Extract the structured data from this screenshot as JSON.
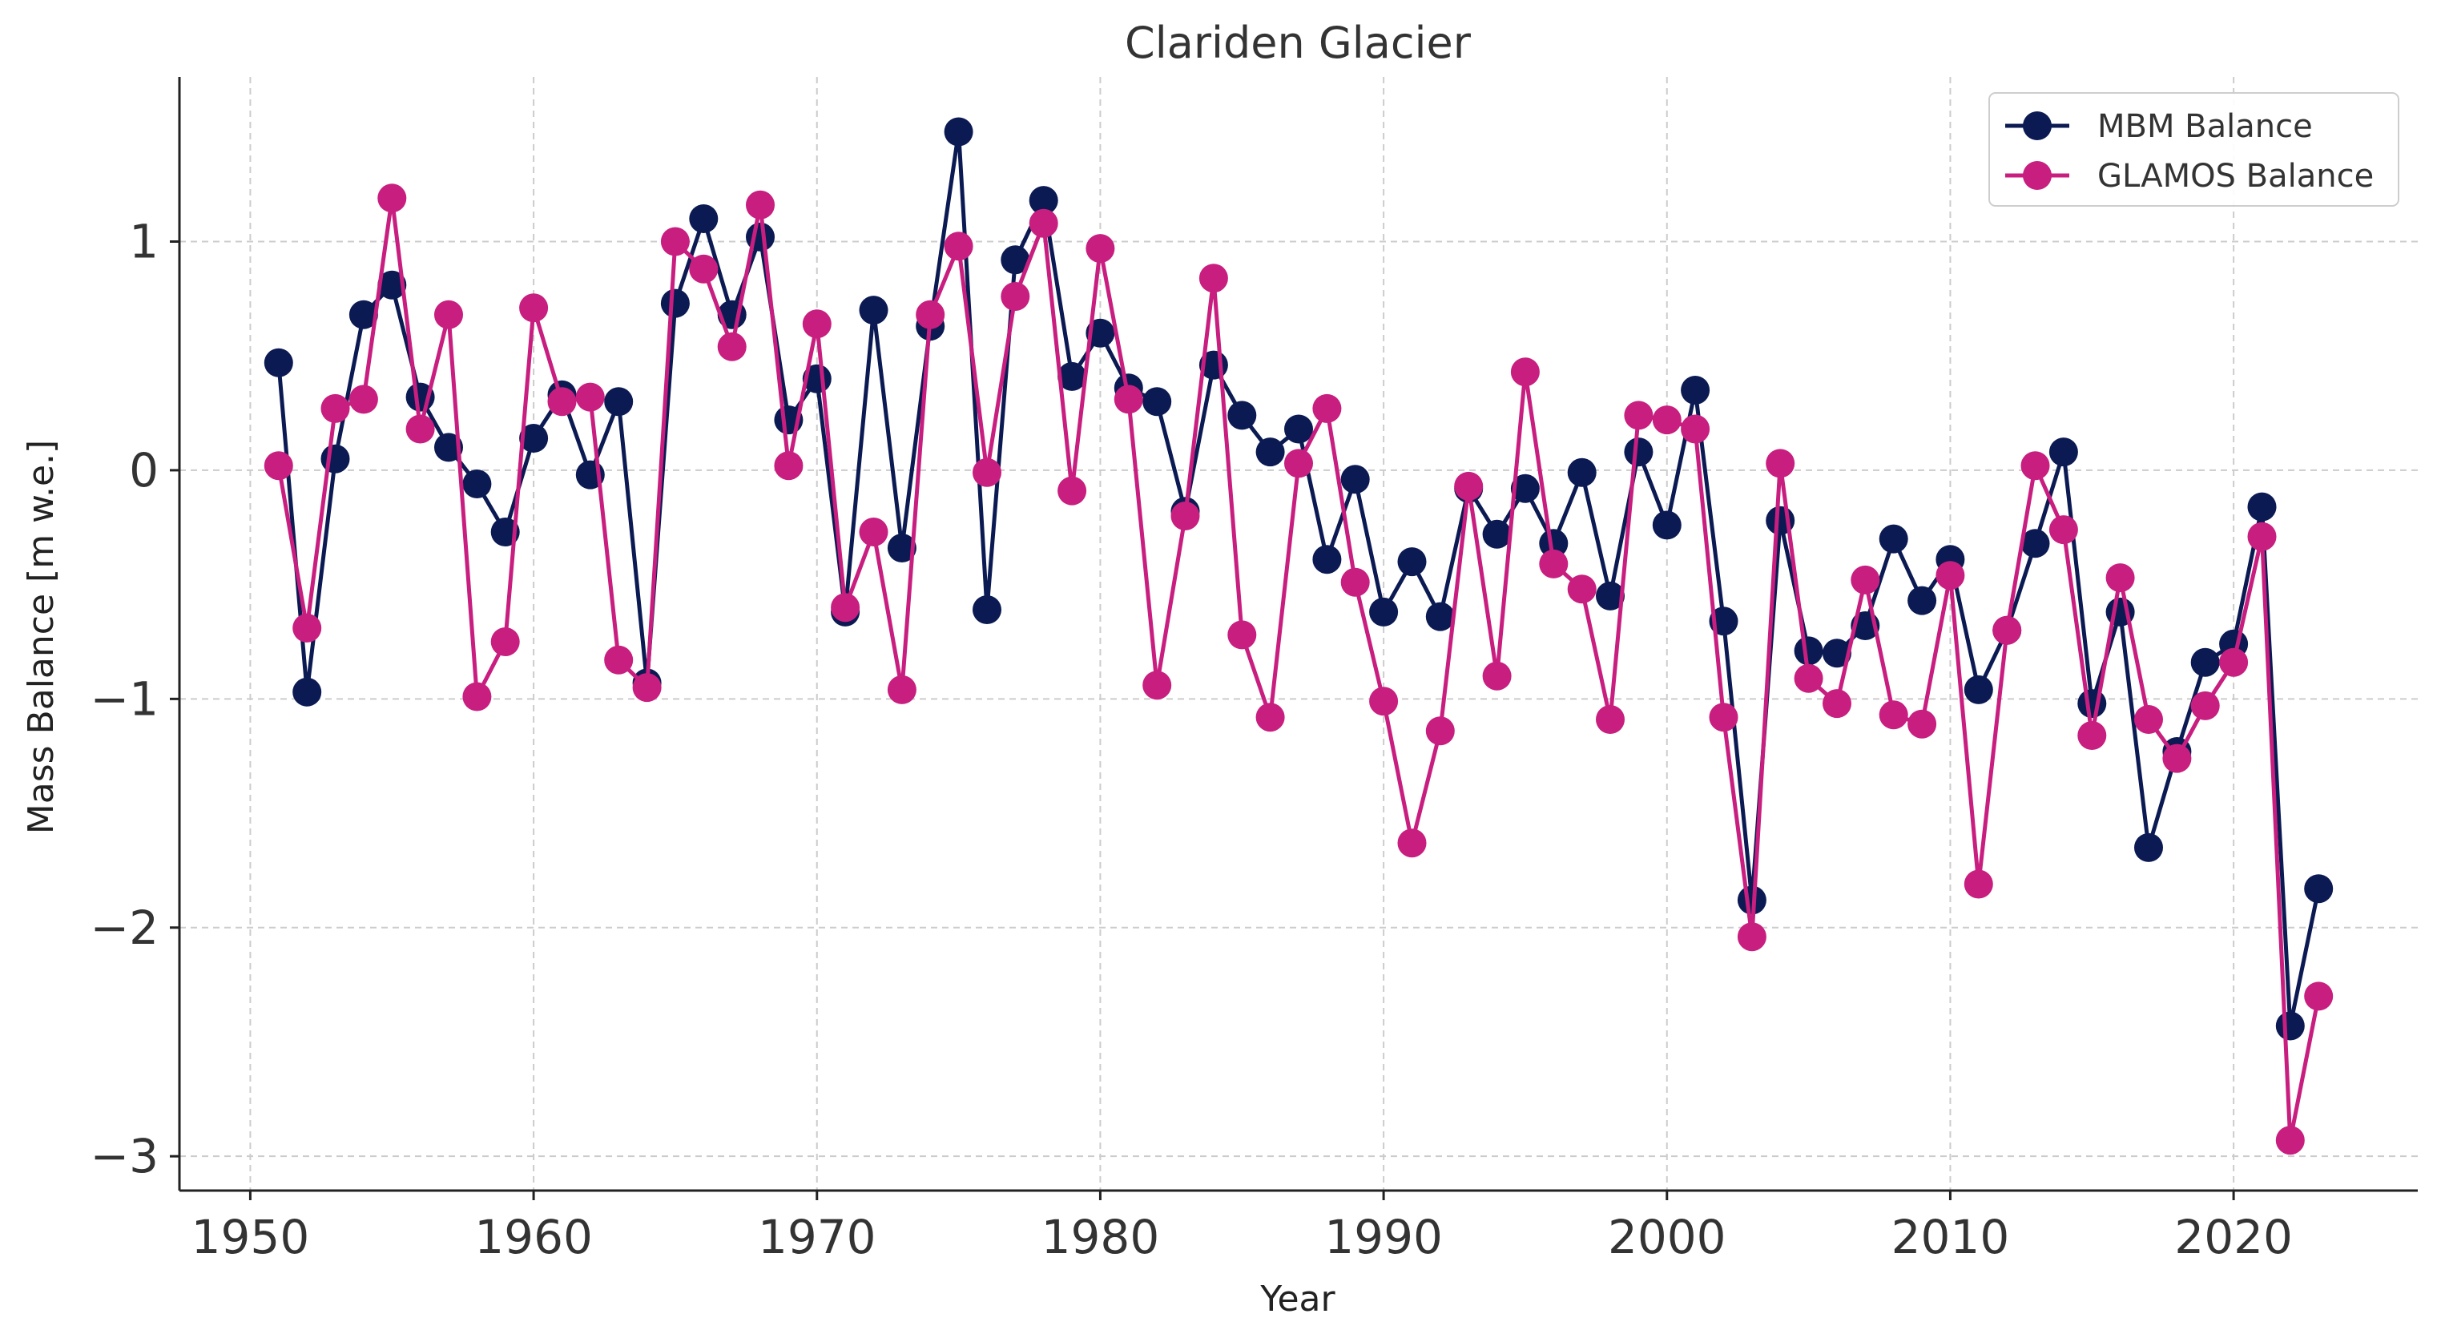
{
  "chart_data": {
    "type": "line",
    "title": "Clariden Glacier",
    "xlabel": "Year",
    "ylabel": "Mass Balance [m w.e.]",
    "xlim": [
      1947.5,
      2026.5
    ],
    "ylim": [
      -3.15,
      1.72
    ],
    "xticks": [
      1950,
      1960,
      1970,
      1980,
      1990,
      2000,
      2010,
      2020
    ],
    "yticks": [
      1,
      0,
      -1,
      -2,
      -3
    ],
    "ytick_labels": [
      "1",
      "0",
      "−1",
      "−2",
      "−3"
    ],
    "grid": true,
    "legend_position": "top-right",
    "x": [
      1951,
      1952,
      1953,
      1954,
      1955,
      1956,
      1957,
      1958,
      1959,
      1960,
      1961,
      1962,
      1963,
      1964,
      1965,
      1966,
      1967,
      1968,
      1969,
      1970,
      1971,
      1972,
      1973,
      1974,
      1975,
      1976,
      1977,
      1978,
      1979,
      1980,
      1981,
      1982,
      1983,
      1984,
      1985,
      1986,
      1987,
      1988,
      1989,
      1990,
      1991,
      1992,
      1993,
      1994,
      1995,
      1996,
      1997,
      1998,
      1999,
      2000,
      2001,
      2002,
      2003,
      2004,
      2005,
      2006,
      2007,
      2008,
      2009,
      2010,
      2011,
      2012,
      2013,
      2014,
      2015,
      2016,
      2017,
      2018,
      2019,
      2020,
      2021,
      2022,
      2023
    ],
    "series": [
      {
        "name": "MBM Balance",
        "color": "#0b1a52",
        "values": [
          0.47,
          -0.97,
          0.05,
          0.68,
          0.81,
          0.32,
          0.1,
          -0.06,
          -0.27,
          0.14,
          0.33,
          -0.02,
          0.3,
          -0.93,
          0.73,
          1.1,
          0.68,
          1.02,
          0.22,
          0.4,
          -0.62,
          0.7,
          -0.34,
          0.63,
          1.48,
          -0.61,
          0.92,
          1.18,
          0.41,
          0.6,
          0.36,
          0.3,
          -0.18,
          0.46,
          0.24,
          0.08,
          0.18,
          -0.39,
          -0.04,
          -0.62,
          -0.4,
          -0.64,
          -0.08,
          -0.28,
          -0.08,
          -0.32,
          -0.01,
          -0.55,
          0.08,
          -0.24,
          0.35,
          -0.66,
          -1.88,
          -0.22,
          -0.79,
          -0.8,
          -0.68,
          -0.3,
          -0.57,
          -0.39,
          -0.96,
          -0.7,
          -0.32,
          0.08,
          -1.02,
          -0.62,
          -1.65,
          -1.23,
          -0.84,
          -0.76,
          -0.16,
          -2.43,
          -1.83
        ]
      },
      {
        "name": "GLAMOS Balance",
        "color": "#c81e7f",
        "values": [
          0.02,
          -0.69,
          0.27,
          0.31,
          1.19,
          0.18,
          0.68,
          -0.99,
          -0.75,
          0.71,
          0.3,
          0.32,
          -0.83,
          -0.95,
          1.0,
          0.88,
          0.54,
          1.16,
          0.02,
          0.64,
          -0.6,
          -0.27,
          -0.96,
          0.68,
          0.98,
          -0.01,
          0.76,
          1.08,
          -0.09,
          0.97,
          0.31,
          -0.94,
          -0.2,
          0.84,
          -0.72,
          -1.08,
          0.03,
          0.27,
          -0.49,
          -1.01,
          -1.63,
          -1.14,
          -0.07,
          -0.9,
          0.43,
          -0.41,
          -0.52,
          -1.09,
          0.24,
          0.22,
          0.18,
          -1.08,
          -2.04,
          0.03,
          -0.91,
          -1.02,
          -0.48,
          -1.07,
          -1.11,
          -0.46,
          -1.81,
          -0.7,
          0.02,
          -0.26,
          -1.16,
          -0.47,
          -1.09,
          -1.26,
          -1.03,
          -0.84,
          -0.29,
          -2.93,
          -2.3
        ]
      }
    ]
  }
}
